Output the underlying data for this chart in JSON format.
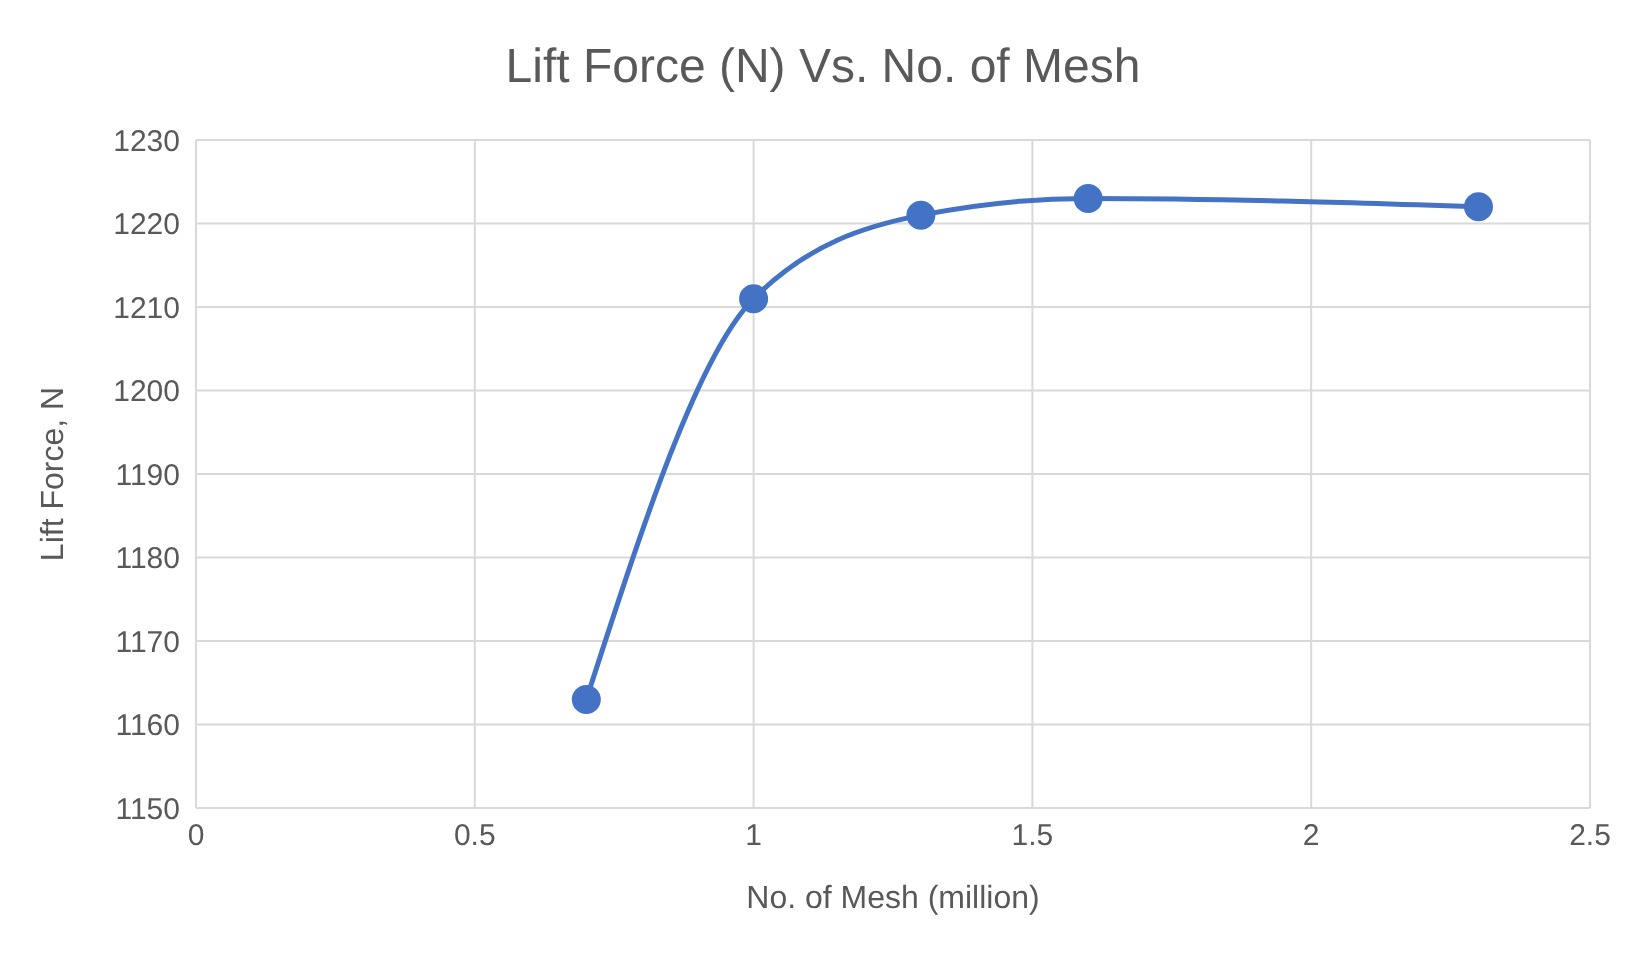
{
  "chart_data": {
    "type": "line",
    "title": "Lift Force (N) Vs. No. of Mesh",
    "xlabel": "No. of Mesh (million)",
    "ylabel": "Lift Force, N",
    "x": [
      0.7,
      1,
      1.3,
      1.6,
      2.3
    ],
    "series": [
      {
        "color": "#4472c4",
        "values": [
          1163,
          1211,
          1221,
          1223,
          1222
        ]
      }
    ],
    "xlim": [
      0,
      2.5
    ],
    "xticks": [
      0,
      0.5,
      1,
      1.5,
      2,
      2.5
    ],
    "ylim": [
      1150,
      1230
    ],
    "yticks": [
      1150,
      1160,
      1170,
      1180,
      1190,
      1200,
      1210,
      1220,
      1230
    ],
    "grid": true,
    "legend": false,
    "marker": "circle",
    "line_style": "solid"
  }
}
